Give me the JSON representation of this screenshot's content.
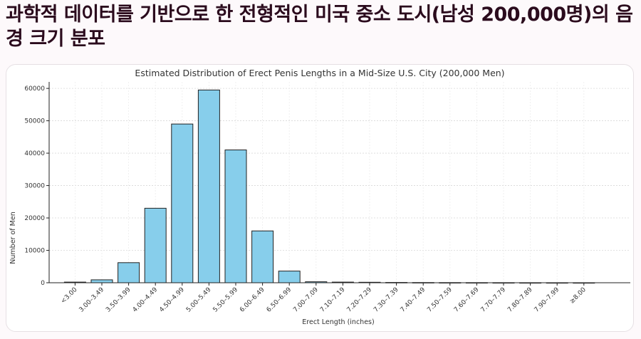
{
  "page": {
    "heading": "과학적 데이터를 기반으로 한 전형적인 미국 중소 도시(남성 200,000명)의 음경 크기 분포"
  },
  "chart_data": {
    "type": "bar",
    "title": "Estimated Distribution of Erect Penis Lengths in a Mid-Size U.S. City (200,000 Men)",
    "xlabel": "Erect Length (inches)",
    "ylabel": "Number of Men",
    "categories": [
      "<3.00",
      "3.00–3.49",
      "3.50–3.99",
      "4.00–4.49",
      "4.50–4.99",
      "5.00–5.49",
      "5.50–5.99",
      "6.00–6.49",
      "6.50–6.99",
      "7.00–7.09",
      "7.10–7.19",
      "7.20–7.29",
      "7.30–7.39",
      "7.40–7.49",
      "7.50–7.59",
      "7.60–7.69",
      "7.70–7.79",
      "7.80–7.89",
      "7.90–7.99",
      "≥8.00"
    ],
    "values": [
      200,
      900,
      6200,
      23000,
      49000,
      59500,
      41000,
      16000,
      3600,
      300,
      200,
      150,
      90,
      60,
      40,
      30,
      20,
      12,
      8,
      5
    ],
    "ylim": [
      0,
      62000
    ],
    "yticks": [
      0,
      10000,
      20000,
      30000,
      40000,
      50000,
      60000
    ],
    "grid": true,
    "colors": {
      "bar_fill": "#87ceeb",
      "bar_stroke": "#222222",
      "grid": "#d8d8d8"
    }
  }
}
